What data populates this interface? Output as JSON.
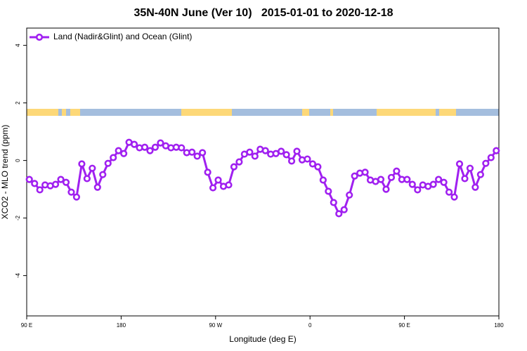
{
  "chart_data": {
    "type": "line",
    "title": "35N-40N June (Ver 10)   2015-01-01 to 2020-12-18",
    "x_label": "Longitude (deg E)",
    "y_label": "XCO2 - MLO trend (ppm)",
    "legend_position": "top-left",
    "xlim": [
      90,
      540
    ],
    "ylim": [
      -5.4,
      4.6
    ],
    "xticks": [
      {
        "value": 90,
        "label": "90 E"
      },
      180,
      {
        "value": 270,
        "label": "90 W"
      },
      {
        "value": 360,
        "label": "0"
      },
      {
        "value": 450,
        "label": "90 E"
      },
      {
        "value": 540,
        "label": "180"
      }
    ],
    "yticks": [
      -4,
      -2,
      0,
      2,
      4
    ],
    "x": [
      92.5,
      97.5,
      102.5,
      107.5,
      112.5,
      117.5,
      122.5,
      127.5,
      132.5,
      137.5,
      142.5,
      147.5,
      152.5,
      157.5,
      162.5,
      167.5,
      172.5,
      177.5,
      182.5,
      187.5,
      192.5,
      197.5,
      202.5,
      207.5,
      212.5,
      217.5,
      222.5,
      227.5,
      232.5,
      237.5,
      242.5,
      247.5,
      252.5,
      257.5,
      262.5,
      267.5,
      272.5,
      277.5,
      282.5,
      287.5,
      292.5,
      297.5,
      302.5,
      307.5,
      312.5,
      317.5,
      322.5,
      327.5,
      332.5,
      337.5,
      342.5,
      347.5,
      352.5,
      357.5,
      362.5,
      367.5,
      372.5,
      377.5,
      382.5,
      387.5,
      392.5,
      397.5,
      402.5,
      407.5,
      412.5,
      417.5,
      422.5,
      427.5,
      432.5,
      437.5,
      442.5,
      447.5,
      452.5,
      457.5,
      462.5,
      467.5,
      472.5,
      477.5,
      482.5,
      487.5,
      492.5,
      497.5,
      502.5,
      507.5,
      512.5,
      517.5,
      522.5,
      527.5,
      532.5,
      537.5
    ],
    "series": [
      {
        "name": "Land (Nadir&Glint) and Ocean (Glint)",
        "color": "#a020f0",
        "values": [
          -0.66,
          -0.8,
          -1.02,
          -0.85,
          -0.88,
          -0.83,
          -0.66,
          -0.76,
          -1.1,
          -1.27,
          -0.12,
          -0.63,
          -0.27,
          -0.93,
          -0.49,
          -0.1,
          0.1,
          0.34,
          0.24,
          0.63,
          0.56,
          0.44,
          0.46,
          0.34,
          0.46,
          0.61,
          0.51,
          0.44,
          0.46,
          0.44,
          0.27,
          0.29,
          0.15,
          0.27,
          -0.41,
          -0.95,
          -0.68,
          -0.9,
          -0.85,
          -0.22,
          -0.05,
          0.22,
          0.29,
          0.15,
          0.39,
          0.34,
          0.22,
          0.24,
          0.32,
          0.2,
          -0.02,
          0.32,
          0.02,
          0.05,
          -0.12,
          -0.22,
          -0.68,
          -1.07,
          -1.46,
          -1.85,
          -1.71,
          -1.2,
          -0.54,
          -0.44,
          -0.41,
          -0.68,
          -0.73,
          -0.66,
          -1.0,
          -0.59,
          -0.37,
          -0.66,
          -0.66,
          -0.83,
          -1.02,
          -0.85,
          -0.9,
          -0.83,
          -0.66,
          -0.76,
          -1.1,
          -1.27,
          -0.12,
          -0.63,
          -0.27,
          -0.93,
          -0.49,
          -0.1,
          0.1,
          0.34
        ]
      }
    ]
  }
}
